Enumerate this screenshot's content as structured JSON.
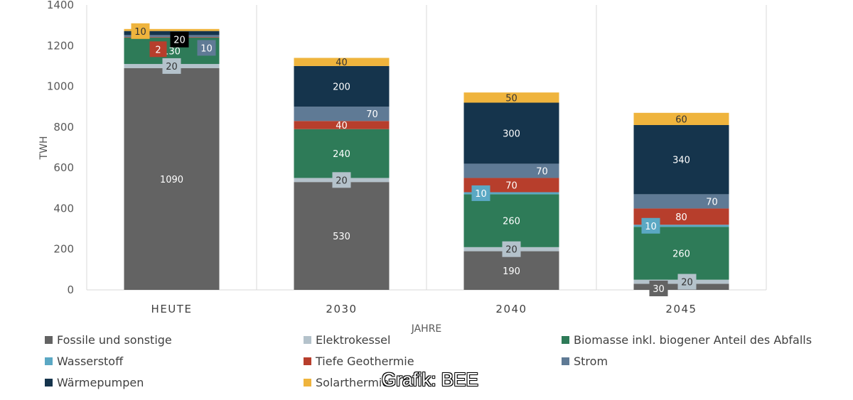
{
  "chart_data": {
    "type": "bar",
    "stacked": true,
    "categories": [
      "HEUTE",
      "2030",
      "2040",
      "2045"
    ],
    "ylabel": "TWH",
    "xlabel": "JAHRE",
    "ylim": [
      0,
      1400
    ],
    "yticks": [
      0,
      200,
      400,
      600,
      800,
      1000,
      1200,
      1400
    ],
    "grid": "vertical separators between categories",
    "legend_position": "bottom",
    "series": [
      {
        "name": "Fossile und sonstige",
        "color": "#636363",
        "values": [
          1090,
          530,
          190,
          30
        ]
      },
      {
        "name": "Elektrokessel",
        "color": "#b4c2cb",
        "values": [
          20,
          20,
          20,
          20
        ]
      },
      {
        "name": "Biomasse inkl. biogener Anteil des Abfalls",
        "color": "#2e7b58",
        "values": [
          130,
          240,
          260,
          260
        ]
      },
      {
        "name": "Wasserstoff",
        "color": "#5ba8c4",
        "values": [
          0,
          0,
          10,
          10
        ]
      },
      {
        "name": "Tiefe Geothermie",
        "color": "#b73e2c",
        "values": [
          2,
          40,
          70,
          80
        ]
      },
      {
        "name": "Strom",
        "color": "#5f7a95",
        "values": [
          10,
          70,
          70,
          70
        ]
      },
      {
        "name": "Wärmepumpen",
        "color": "#15344c",
        "values": [
          20,
          200,
          300,
          340
        ]
      },
      {
        "name": "Solarthermie",
        "color": "#efb43d",
        "values": [
          10,
          40,
          50,
          60
        ]
      }
    ]
  },
  "credit": "Grafik: BEE"
}
